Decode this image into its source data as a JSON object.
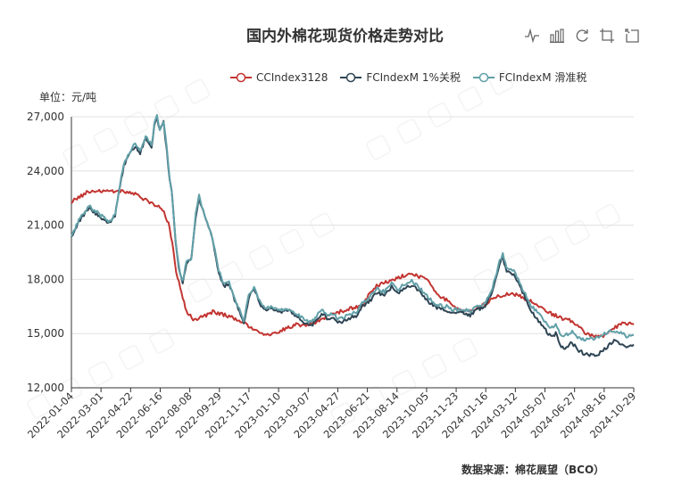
{
  "chart_data": {
    "type": "line",
    "title": "国内外棉花现货价格走势对比",
    "unit_label": "单位：元/吨",
    "source": "数据来源：棉花展望（BCO）",
    "ylim": [
      12000,
      27000
    ],
    "yticks": [
      12000,
      15000,
      18000,
      21000,
      24000,
      27000
    ],
    "ytick_labels": [
      "12,000",
      "15,000",
      "18,000",
      "21,000",
      "24,000",
      "27,000"
    ],
    "xlim": [
      "2022-01-04",
      "2024-10-31"
    ],
    "xtick_labels": [
      "2022-01-04",
      "2022-03-01",
      "2022-04-22",
      "2022-06-16",
      "2022-08-08",
      "2022-09-29",
      "2022-11-17",
      "2023-01-10",
      "2023-03-07",
      "2023-04-27",
      "2023-06-21",
      "2023-08-14",
      "2023-10-05",
      "2023-11-23",
      "2024-01-16",
      "2024-03-12",
      "2024-05-07",
      "2024-06-27",
      "2024-08-16",
      "2024-10-29"
    ],
    "grid": "horizontal",
    "legend_position": "top",
    "series": [
      {
        "name": "CCIndex3128",
        "color": "#c23531",
        "points": [
          [
            "2022-01-04",
            22300
          ],
          [
            "2022-02-01",
            22800
          ],
          [
            "2022-03-01",
            22900
          ],
          [
            "2022-04-01",
            22900
          ],
          [
            "2022-05-01",
            22700
          ],
          [
            "2022-05-25",
            22300
          ],
          [
            "2022-06-20",
            21900
          ],
          [
            "2022-07-01",
            21100
          ],
          [
            "2022-07-08",
            20000
          ],
          [
            "2022-07-15",
            18400
          ],
          [
            "2022-07-25",
            17300
          ],
          [
            "2022-08-03",
            16200
          ],
          [
            "2022-08-15",
            15800
          ],
          [
            "2022-09-01",
            15900
          ],
          [
            "2022-09-20",
            16200
          ],
          [
            "2022-10-05",
            16100
          ],
          [
            "2022-10-25",
            15900
          ],
          [
            "2022-11-10",
            15700
          ],
          [
            "2022-11-25",
            15400
          ],
          [
            "2022-12-10",
            15100
          ],
          [
            "2022-12-25",
            14900
          ],
          [
            "2023-01-10",
            15000
          ],
          [
            "2023-02-01",
            15300
          ],
          [
            "2023-02-20",
            15500
          ],
          [
            "2023-03-10",
            15400
          ],
          [
            "2023-04-01",
            15700
          ],
          [
            "2023-04-20",
            16000
          ],
          [
            "2023-05-10",
            16200
          ],
          [
            "2023-06-01",
            16400
          ],
          [
            "2023-06-20",
            16500
          ],
          [
            "2023-07-05",
            17200
          ],
          [
            "2023-07-20",
            17700
          ],
          [
            "2023-08-01",
            17800
          ],
          [
            "2023-08-20",
            18000
          ],
          [
            "2023-09-05",
            18200
          ],
          [
            "2023-09-20",
            18300
          ],
          [
            "2023-10-01",
            18200
          ],
          [
            "2023-10-20",
            17900
          ],
          [
            "2023-11-05",
            17200
          ],
          [
            "2023-11-25",
            16800
          ],
          [
            "2023-12-10",
            16400
          ],
          [
            "2023-12-25",
            16200
          ],
          [
            "2024-01-10",
            16300
          ],
          [
            "2024-01-30",
            16600
          ],
          [
            "2024-02-20",
            17000
          ],
          [
            "2024-03-10",
            17200
          ],
          [
            "2024-03-25",
            17200
          ],
          [
            "2024-04-10",
            17000
          ],
          [
            "2024-04-25",
            16800
          ],
          [
            "2024-05-10",
            16500
          ],
          [
            "2024-05-25",
            16200
          ],
          [
            "2024-06-10",
            16000
          ],
          [
            "2024-06-25",
            15800
          ],
          [
            "2024-07-10",
            15700
          ],
          [
            "2024-07-25",
            15300
          ],
          [
            "2024-08-05",
            15000
          ],
          [
            "2024-08-20",
            14800
          ],
          [
            "2024-09-05",
            14900
          ],
          [
            "2024-09-25",
            15300
          ],
          [
            "2024-10-10",
            15600
          ],
          [
            "2024-10-31",
            15500
          ]
        ]
      },
      {
        "name": "FCIndexM 1%关税",
        "color": "#2f4554",
        "points": [
          [
            "2022-01-04",
            20300
          ],
          [
            "2022-01-20",
            21300
          ],
          [
            "2022-02-05",
            22000
          ],
          [
            "2022-02-15",
            21700
          ],
          [
            "2022-03-01",
            21400
          ],
          [
            "2022-03-15",
            21100
          ],
          [
            "2022-03-25",
            21500
          ],
          [
            "2022-04-01",
            22800
          ],
          [
            "2022-04-10",
            24300
          ],
          [
            "2022-04-20",
            24900
          ],
          [
            "2022-05-01",
            25400
          ],
          [
            "2022-05-10",
            25000
          ],
          [
            "2022-05-20",
            25800
          ],
          [
            "2022-05-31",
            25300
          ],
          [
            "2022-06-05",
            26500
          ],
          [
            "2022-06-10",
            27000
          ],
          [
            "2022-06-15",
            26200
          ],
          [
            "2022-06-22",
            26700
          ],
          [
            "2022-06-28",
            25100
          ],
          [
            "2022-07-03",
            23500
          ],
          [
            "2022-07-07",
            22800
          ],
          [
            "2022-07-14",
            20100
          ],
          [
            "2022-07-20",
            18600
          ],
          [
            "2022-07-27",
            17800
          ],
          [
            "2022-08-03",
            18900
          ],
          [
            "2022-08-12",
            19100
          ],
          [
            "2022-08-20",
            21500
          ],
          [
            "2022-08-26",
            22500
          ],
          [
            "2022-09-05",
            21500
          ],
          [
            "2022-09-15",
            20700
          ],
          [
            "2022-09-22",
            19900
          ],
          [
            "2022-10-01",
            18400
          ],
          [
            "2022-10-10",
            17600
          ],
          [
            "2022-10-20",
            17800
          ],
          [
            "2022-10-30",
            16900
          ],
          [
            "2022-11-08",
            16200
          ],
          [
            "2022-11-16",
            15500
          ],
          [
            "2022-11-25",
            17000
          ],
          [
            "2022-12-05",
            17500
          ],
          [
            "2022-12-15",
            16700
          ],
          [
            "2022-12-25",
            16300
          ],
          [
            "2023-01-05",
            16400
          ],
          [
            "2023-01-20",
            16200
          ],
          [
            "2023-02-05",
            16300
          ],
          [
            "2023-02-20",
            16000
          ],
          [
            "2023-03-07",
            15600
          ],
          [
            "2023-03-20",
            15400
          ],
          [
            "2023-04-01",
            15900
          ],
          [
            "2023-04-10",
            16100
          ],
          [
            "2023-04-20",
            15800
          ],
          [
            "2023-04-27",
            15900
          ],
          [
            "2023-05-10",
            15600
          ],
          [
            "2023-05-25",
            15800
          ],
          [
            "2023-06-10",
            16000
          ],
          [
            "2023-06-21",
            16500
          ],
          [
            "2023-07-05",
            16800
          ],
          [
            "2023-07-20",
            17300
          ],
          [
            "2023-08-01",
            17100
          ],
          [
            "2023-08-14",
            17600
          ],
          [
            "2023-08-25",
            17200
          ],
          [
            "2023-09-05",
            17500
          ],
          [
            "2023-09-20",
            17700
          ],
          [
            "2023-10-05",
            17300
          ],
          [
            "2023-10-20",
            16800
          ],
          [
            "2023-11-05",
            16400
          ],
          [
            "2023-11-23",
            16300
          ],
          [
            "2023-12-05",
            16100
          ],
          [
            "2023-12-20",
            16200
          ],
          [
            "2024-01-05",
            16000
          ],
          [
            "2024-01-16",
            16300
          ],
          [
            "2024-02-01",
            16500
          ],
          [
            "2024-02-15",
            17300
          ],
          [
            "2024-02-28",
            18800
          ],
          [
            "2024-03-05",
            19200
          ],
          [
            "2024-03-12",
            18400
          ],
          [
            "2024-03-25",
            18300
          ],
          [
            "2024-04-05",
            17600
          ],
          [
            "2024-04-15",
            17000
          ],
          [
            "2024-04-25",
            16300
          ],
          [
            "2024-05-07",
            15800
          ],
          [
            "2024-05-20",
            15300
          ],
          [
            "2024-06-01",
            14800
          ],
          [
            "2024-06-10",
            15000
          ],
          [
            "2024-06-20",
            14300
          ],
          [
            "2024-06-27",
            14200
          ],
          [
            "2024-07-10",
            14500
          ],
          [
            "2024-07-20",
            14100
          ],
          [
            "2024-08-01",
            13900
          ],
          [
            "2024-08-16",
            13800
          ],
          [
            "2024-08-28",
            13900
          ],
          [
            "2024-09-10",
            14200
          ],
          [
            "2024-09-25",
            14600
          ],
          [
            "2024-10-10",
            14400
          ],
          [
            "2024-10-20",
            14300
          ],
          [
            "2024-10-31",
            14400
          ]
        ]
      },
      {
        "name": "FCIndexM 滑准税",
        "color": "#61a0a8",
        "points": [
          [
            "2022-01-04",
            20400
          ],
          [
            "2022-01-20",
            21400
          ],
          [
            "2022-02-05",
            22100
          ],
          [
            "2022-02-15",
            21800
          ],
          [
            "2022-03-01",
            21500
          ],
          [
            "2022-03-15",
            21200
          ],
          [
            "2022-03-25",
            21600
          ],
          [
            "2022-04-01",
            22900
          ],
          [
            "2022-04-10",
            24400
          ],
          [
            "2022-04-20",
            25000
          ],
          [
            "2022-05-01",
            25500
          ],
          [
            "2022-05-10",
            25100
          ],
          [
            "2022-05-20",
            25900
          ],
          [
            "2022-05-31",
            25400
          ],
          [
            "2022-06-05",
            26600
          ],
          [
            "2022-06-10",
            27100
          ],
          [
            "2022-06-15",
            26300
          ],
          [
            "2022-06-22",
            26800
          ],
          [
            "2022-06-28",
            25200
          ],
          [
            "2022-07-03",
            23600
          ],
          [
            "2022-07-07",
            22900
          ],
          [
            "2022-07-14",
            20200
          ],
          [
            "2022-07-20",
            18700
          ],
          [
            "2022-07-27",
            17900
          ],
          [
            "2022-08-03",
            19000
          ],
          [
            "2022-08-12",
            19200
          ],
          [
            "2022-08-20",
            21600
          ],
          [
            "2022-08-26",
            22600
          ],
          [
            "2022-09-05",
            21600
          ],
          [
            "2022-09-15",
            20800
          ],
          [
            "2022-09-22",
            20000
          ],
          [
            "2022-10-01",
            18500
          ],
          [
            "2022-10-10",
            17700
          ],
          [
            "2022-10-20",
            17900
          ],
          [
            "2022-10-30",
            17000
          ],
          [
            "2022-11-08",
            16300
          ],
          [
            "2022-11-16",
            15700
          ],
          [
            "2022-11-25",
            17100
          ],
          [
            "2022-12-05",
            17600
          ],
          [
            "2022-12-15",
            16800
          ],
          [
            "2022-12-25",
            16400
          ],
          [
            "2023-01-05",
            16500
          ],
          [
            "2023-01-20",
            16300
          ],
          [
            "2023-02-05",
            16400
          ],
          [
            "2023-02-20",
            16100
          ],
          [
            "2023-03-07",
            15800
          ],
          [
            "2023-03-20",
            15600
          ],
          [
            "2023-04-01",
            16100
          ],
          [
            "2023-04-10",
            16300
          ],
          [
            "2023-04-20",
            16000
          ],
          [
            "2023-04-27",
            16100
          ],
          [
            "2023-05-10",
            15800
          ],
          [
            "2023-05-25",
            16000
          ],
          [
            "2023-06-10",
            16200
          ],
          [
            "2023-06-21",
            16700
          ],
          [
            "2023-07-05",
            17000
          ],
          [
            "2023-07-20",
            17500
          ],
          [
            "2023-08-01",
            17300
          ],
          [
            "2023-08-14",
            17800
          ],
          [
            "2023-08-25",
            17400
          ],
          [
            "2023-09-05",
            17700
          ],
          [
            "2023-09-20",
            17900
          ],
          [
            "2023-10-05",
            17500
          ],
          [
            "2023-10-20",
            17000
          ],
          [
            "2023-11-05",
            16600
          ],
          [
            "2023-11-23",
            16500
          ],
          [
            "2023-12-05",
            16300
          ],
          [
            "2023-12-20",
            16400
          ],
          [
            "2024-01-05",
            16200
          ],
          [
            "2024-01-16",
            16500
          ],
          [
            "2024-02-01",
            16700
          ],
          [
            "2024-02-15",
            17500
          ],
          [
            "2024-02-28",
            19000
          ],
          [
            "2024-03-05",
            19400
          ],
          [
            "2024-03-12",
            18600
          ],
          [
            "2024-03-25",
            18500
          ],
          [
            "2024-04-05",
            17800
          ],
          [
            "2024-04-15",
            17200
          ],
          [
            "2024-04-25",
            16600
          ],
          [
            "2024-05-07",
            16200
          ],
          [
            "2024-05-20",
            15700
          ],
          [
            "2024-06-01",
            15300
          ],
          [
            "2024-06-10",
            15500
          ],
          [
            "2024-06-20",
            14900
          ],
          [
            "2024-06-27",
            14900
          ],
          [
            "2024-07-10",
            15100
          ],
          [
            "2024-07-20",
            14800
          ],
          [
            "2024-08-01",
            14700
          ],
          [
            "2024-08-16",
            14700
          ],
          [
            "2024-08-28",
            14800
          ],
          [
            "2024-09-10",
            15000
          ],
          [
            "2024-09-25",
            15200
          ],
          [
            "2024-10-10",
            15000
          ],
          [
            "2024-10-20",
            14800
          ],
          [
            "2024-10-31",
            14900
          ]
        ]
      }
    ]
  },
  "toolbox": {
    "icons": [
      "line-chart-icon",
      "bar-chart-icon",
      "restore-icon",
      "crop-icon",
      "zoom-back-icon"
    ]
  }
}
